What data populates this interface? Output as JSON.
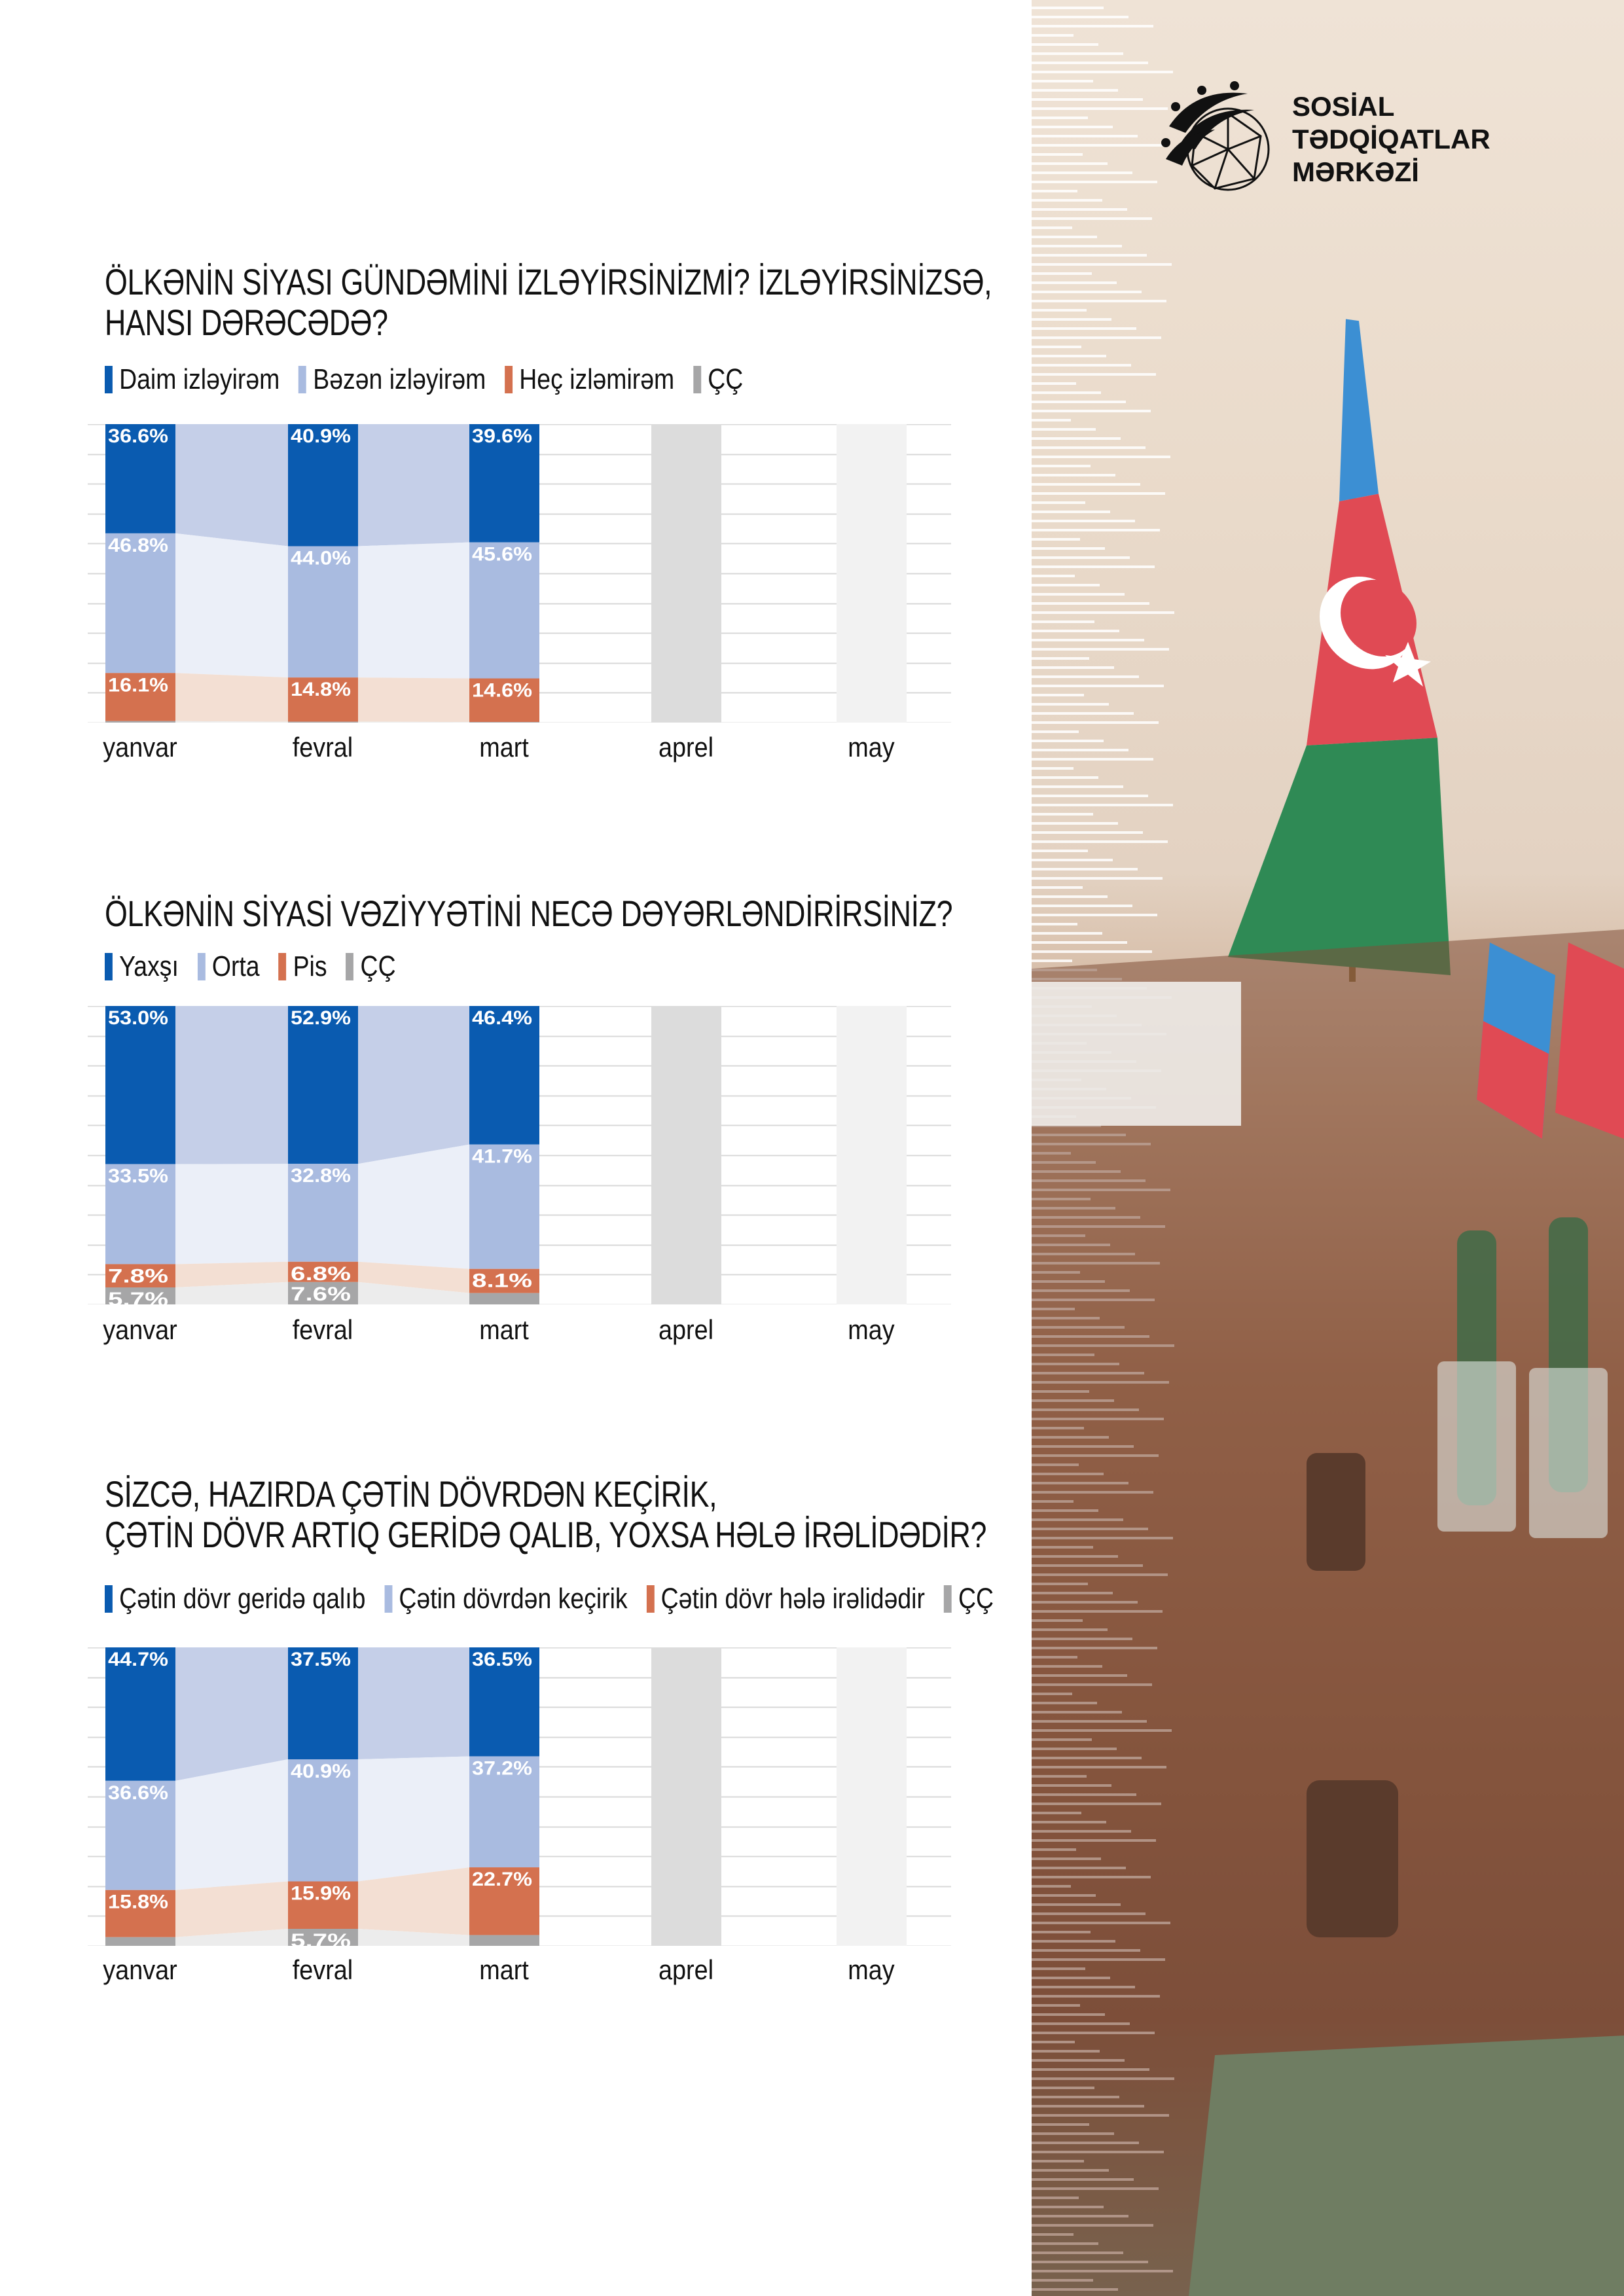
{
  "logo": {
    "line1": "SOSİAL",
    "line2": "TƏDQİQATLAR",
    "line3": "MƏRKƏZİ"
  },
  "colors": {
    "series": [
      "#0a5bb0",
      "#a9bbe0",
      "#d4714f",
      "#a6a6a7"
    ],
    "bands": [
      "#c5cfe8",
      "#ebeff8",
      "#f3dfd3",
      "#ececec"
    ]
  },
  "chart_data": [
    {
      "type": "bar",
      "stacked": true,
      "title_line1": "ÖLKƏNİN SİYASI GÜNDƏMİNİ İZLƏYİRSİNİZMİ? İZLƏYİRSİNİZSƏ,",
      "title_line2": "HANSI DƏRƏCƏDƏ?",
      "categories": [
        "yanvar",
        "fevral",
        "mart",
        "aprel",
        "may"
      ],
      "ylim": [
        0,
        100
      ],
      "grid": true,
      "legend": "top-left",
      "series": [
        {
          "name": "Daim izləyirəm",
          "values": [
            36.6,
            40.9,
            39.6,
            null,
            null
          ],
          "labels": [
            "36.6%",
            "40.9%",
            "39.6%",
            null,
            null
          ]
        },
        {
          "name": "Bəzən izləyirəm",
          "values": [
            46.8,
            44.0,
            45.6,
            null,
            null
          ],
          "labels": [
            "46.8%",
            "44.0%",
            "45.6%",
            null,
            null
          ]
        },
        {
          "name": "Heç izləmirəm",
          "values": [
            16.1,
            14.8,
            14.6,
            null,
            null
          ],
          "labels": [
            "16.1%",
            "14.8%",
            "14.6%",
            null,
            null
          ]
        },
        {
          "name": "ÇÇ",
          "values": [
            0.5,
            0.3,
            0.2,
            null,
            null
          ],
          "labels": [
            null,
            null,
            null,
            null,
            null
          ]
        }
      ]
    },
    {
      "type": "bar",
      "stacked": true,
      "title_line1": "ÖLKƏNİN SİYASİ VƏZİYYƏTİNİ NECƏ DƏYƏRLƏNDİRİRSİNİZ?",
      "title_line2": "",
      "categories": [
        "yanvar",
        "fevral",
        "mart",
        "aprel",
        "may"
      ],
      "ylim": [
        0,
        100
      ],
      "grid": true,
      "legend": "top-left",
      "series": [
        {
          "name": "Yaxşı",
          "values": [
            53.0,
            52.9,
            46.4,
            null,
            null
          ],
          "labels": [
            "53.0%",
            "52.9%",
            "46.4%",
            null,
            null
          ]
        },
        {
          "name": "Orta",
          "values": [
            33.5,
            32.8,
            41.7,
            null,
            null
          ],
          "labels": [
            "33.5%",
            "32.8%",
            "41.7%",
            null,
            null
          ]
        },
        {
          "name": "Pis",
          "values": [
            7.8,
            6.8,
            8.1,
            null,
            null
          ],
          "labels": [
            "7.8%",
            "6.8%",
            "8.1%",
            null,
            null
          ]
        },
        {
          "name": "ÇÇ",
          "values": [
            5.7,
            7.6,
            3.8,
            null,
            null
          ],
          "labels": [
            "5.7%",
            "7.6%",
            null,
            null,
            null
          ]
        }
      ]
    },
    {
      "type": "bar",
      "stacked": true,
      "title_line1": "SİZCƏ, HAZIRDA ÇƏTİN DÖVRDƏN KEÇİRİK,",
      "title_line2": "ÇƏTİN DÖVR ARTIQ GERİDƏ QALIB, YOXSA HƏLƏ İRƏLİDƏDİR?",
      "categories": [
        "yanvar",
        "fevral",
        "mart",
        "aprel",
        "may"
      ],
      "ylim": [
        0,
        100
      ],
      "grid": true,
      "legend": "top-left",
      "series": [
        {
          "name": "Çətin dövr geridə qalıb",
          "values": [
            44.7,
            37.5,
            36.5,
            null,
            null
          ],
          "labels": [
            "44.7%",
            "37.5%",
            "36.5%",
            null,
            null
          ]
        },
        {
          "name": "Çətin dövrdən keçirik",
          "values": [
            36.6,
            40.9,
            37.2,
            null,
            null
          ],
          "labels": [
            "36.6%",
            "40.9%",
            "37.2%",
            null,
            null
          ]
        },
        {
          "name": "Çətin dövr hələ irəlidədir",
          "values": [
            15.8,
            15.9,
            22.7,
            null,
            null
          ],
          "labels": [
            "15.8%",
            "15.9%",
            "22.7%",
            null,
            null
          ]
        },
        {
          "name": "ÇÇ",
          "values": [
            2.9,
            5.7,
            3.6,
            null,
            null
          ],
          "labels": [
            null,
            "5.7%",
            null,
            null,
            null
          ]
        }
      ]
    }
  ]
}
